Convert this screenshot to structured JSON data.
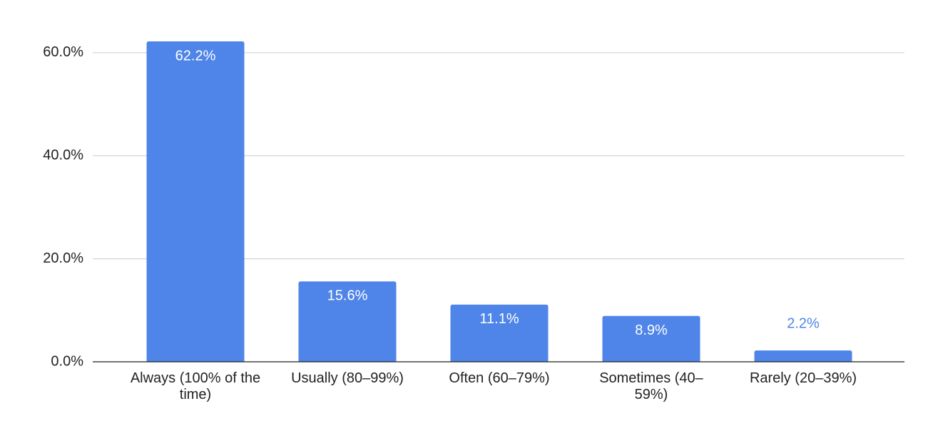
{
  "chart_data": {
    "type": "bar",
    "categories": [
      "Always (100% of the time)",
      "Usually (80–99%)",
      "Often (60–79%)",
      "Sometimes (40–59%)",
      "Rarely (20–39%)"
    ],
    "values": [
      62.2,
      15.6,
      11.1,
      8.9,
      2.2
    ],
    "value_labels": [
      "62.2%",
      "15.6%",
      "11.1%",
      "8.9%",
      "2.2%"
    ],
    "color": "#4f85e8",
    "ylim": [
      0,
      64
    ],
    "yticks": [
      {
        "value": 0,
        "label": "0.0%"
      },
      {
        "value": 20,
        "label": "20.0%"
      },
      {
        "value": 40,
        "label": "40.0%"
      },
      {
        "value": 60,
        "label": "60.0%"
      }
    ],
    "grid": true
  }
}
